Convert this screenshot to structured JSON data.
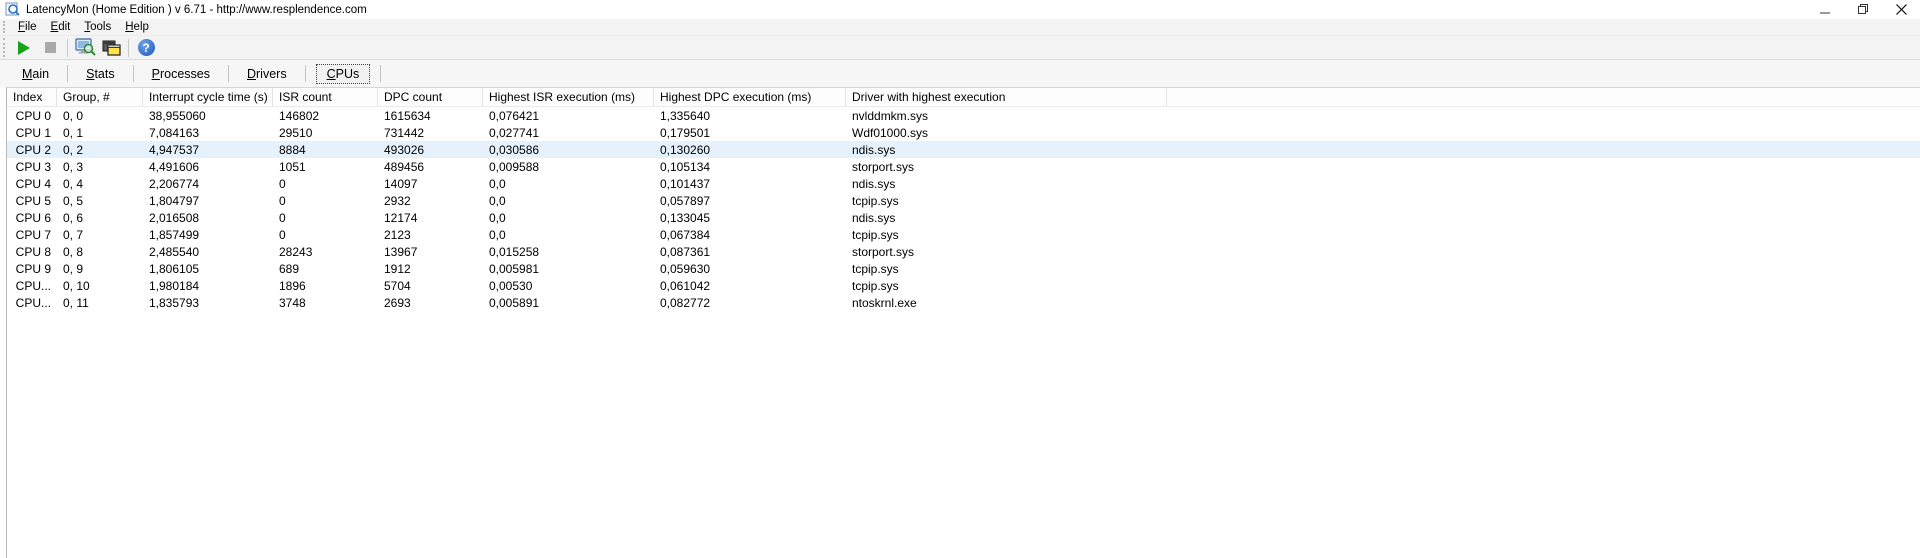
{
  "window": {
    "title": "LatencyMon  (Home Edition )  v 6.71 - http://www.resplendence.com",
    "control_icons": [
      "minimize-icon",
      "restore-icon",
      "close-icon"
    ]
  },
  "menu": {
    "items": [
      "File",
      "Edit",
      "Tools",
      "Help"
    ]
  },
  "toolbar": {
    "icons": [
      "play-icon",
      "stop-icon",
      "report-icon",
      "processes-window-icon",
      "help-icon"
    ]
  },
  "tabs": [
    "Main",
    "Stats",
    "Processes",
    "Drivers",
    "CPUs"
  ],
  "active_tab": "CPUs",
  "table": {
    "columns": [
      "Index",
      "Group, #",
      "Interrupt cycle time (s)",
      "ISR count",
      "DPC count",
      "Highest ISR execution (ms)",
      "Highest DPC execution (ms)",
      "Driver with highest execution"
    ],
    "rows": [
      [
        "CPU 0",
        "0, 0",
        "38,955060",
        "146802",
        "1615634",
        "0,076421",
        "1,335640",
        "nvlddmkm.sys"
      ],
      [
        "CPU 1",
        "0, 1",
        "7,084163",
        "29510",
        "731442",
        "0,027741",
        "0,179501",
        "Wdf01000.sys"
      ],
      [
        "CPU 2",
        "0, 2",
        "4,947537",
        "8884",
        "493026",
        "0,030586",
        "0,130260",
        "ndis.sys"
      ],
      [
        "CPU 3",
        "0, 3",
        "4,491606",
        "1051",
        "489456",
        "0,009588",
        "0,105134",
        "storport.sys"
      ],
      [
        "CPU 4",
        "0, 4",
        "2,206774",
        "0",
        "14097",
        "0,0",
        "0,101437",
        "ndis.sys"
      ],
      [
        "CPU 5",
        "0, 5",
        "1,804797",
        "0",
        "2932",
        "0,0",
        "0,057897",
        "tcpip.sys"
      ],
      [
        "CPU 6",
        "0, 6",
        "2,016508",
        "0",
        "12174",
        "0,0",
        "0,133045",
        "ndis.sys"
      ],
      [
        "CPU 7",
        "0, 7",
        "1,857499",
        "0",
        "2123",
        "0,0",
        "0,067384",
        "tcpip.sys"
      ],
      [
        "CPU 8",
        "0, 8",
        "2,485540",
        "28243",
        "13967",
        "0,015258",
        "0,087361",
        "storport.sys"
      ],
      [
        "CPU 9",
        "0, 9",
        "1,806105",
        "689",
        "1912",
        "0,005981",
        "0,059630",
        "tcpip.sys"
      ],
      [
        "CPU...",
        "0, 10",
        "1,980184",
        "1896",
        "5704",
        "0,00530",
        "0,061042",
        "tcpip.sys"
      ],
      [
        "CPU...",
        "0, 11",
        "1,835793",
        "3748",
        "2693",
        "0,005891",
        "0,082772",
        "ntoskrnl.exe"
      ]
    ],
    "selected_row_index": 2,
    "selection_color": "#e6f2fb"
  }
}
